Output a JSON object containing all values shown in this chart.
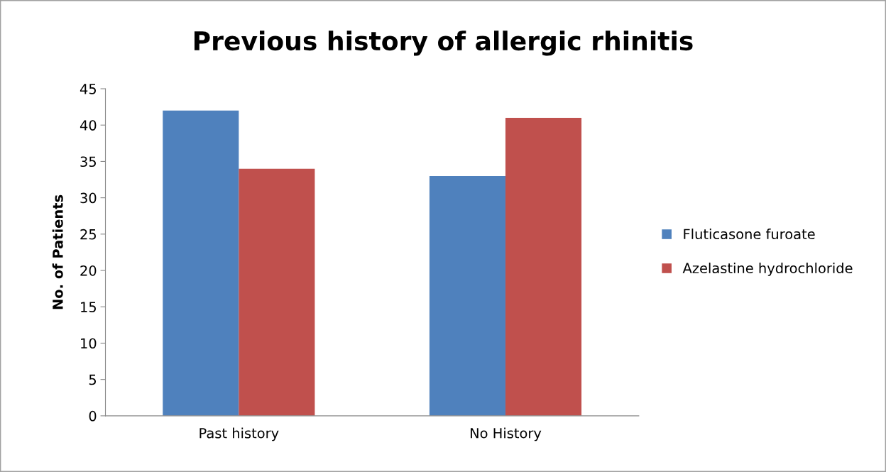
{
  "chart_data": {
    "type": "bar",
    "title": "Previous history of allergic rhinitis",
    "ylabel": "No. of Patients",
    "categories": [
      "Past history",
      "No History"
    ],
    "series": [
      {
        "name": "Fluticasone furoate",
        "color": "#4f81bd",
        "values": [
          42,
          33
        ]
      },
      {
        "name": "Azelastine hydrochloride",
        "color": "#c0504d",
        "values": [
          34,
          41
        ]
      }
    ],
    "ylim": [
      0,
      45
    ],
    "yticks": [
      0,
      5,
      10,
      15,
      20,
      25,
      30,
      35,
      40,
      45
    ],
    "grid": false,
    "legend": "right"
  }
}
